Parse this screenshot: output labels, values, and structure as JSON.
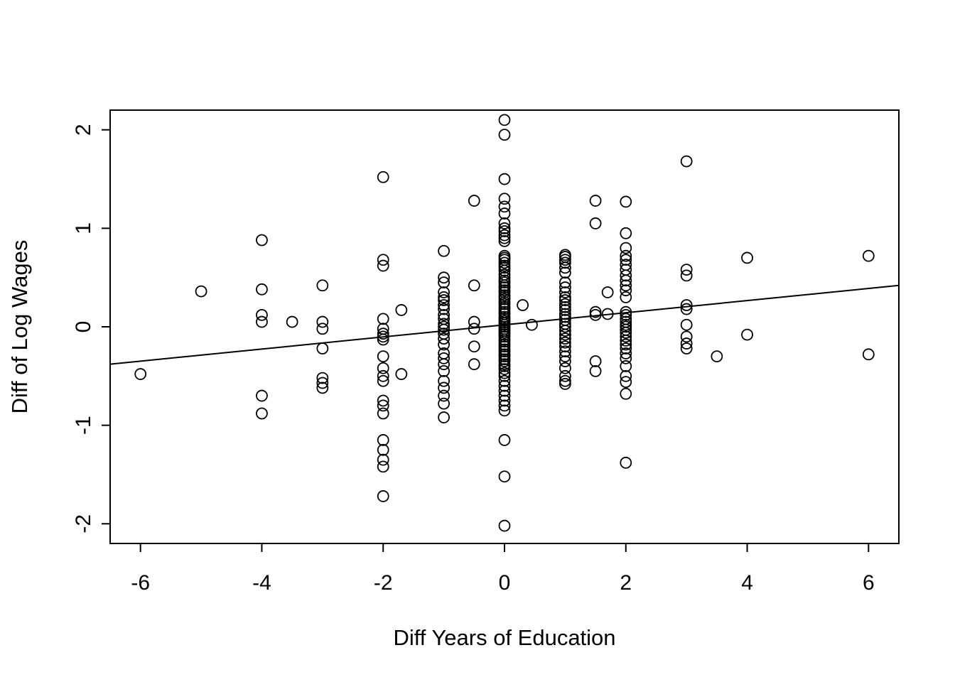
{
  "chart_data": {
    "type": "scatter",
    "title": "",
    "xlabel": "Diff Years of Education",
    "ylabel": "Diff of Log Wages",
    "xlim": [
      -6.5,
      6.5
    ],
    "ylim": [
      -2.2,
      2.2
    ],
    "x_ticks": [
      -6,
      -4,
      -2,
      0,
      2,
      4,
      6
    ],
    "y_ticks": [
      -2,
      -1,
      0,
      1,
      2
    ],
    "grid": false,
    "legend": "none",
    "marker": "open-circle",
    "marker_color": "#000000",
    "fit_line": {
      "slope": 0.0615,
      "intercept": 0.02,
      "color": "#000000"
    },
    "points": [
      [
        -6,
        -0.48
      ],
      [
        -5,
        0.36
      ],
      [
        -4,
        0.88
      ],
      [
        -4,
        0.38
      ],
      [
        -4,
        0.12
      ],
      [
        -4,
        0.05
      ],
      [
        -4,
        -0.7
      ],
      [
        -4,
        -0.88
      ],
      [
        -3.5,
        0.05
      ],
      [
        -3,
        0.42
      ],
      [
        -3,
        0.05
      ],
      [
        -3,
        -0.02
      ],
      [
        -3,
        -0.22
      ],
      [
        -3,
        -0.52
      ],
      [
        -3,
        -0.57
      ],
      [
        -3,
        -0.62
      ],
      [
        -2,
        1.52
      ],
      [
        -2,
        0.68
      ],
      [
        -2,
        0.62
      ],
      [
        -2,
        0.08
      ],
      [
        -2,
        -0.02
      ],
      [
        -2,
        -0.07
      ],
      [
        -2,
        -0.1
      ],
      [
        -2,
        -0.13
      ],
      [
        -2,
        -0.3
      ],
      [
        -2,
        -0.42
      ],
      [
        -2,
        -0.5
      ],
      [
        -2,
        -0.55
      ],
      [
        -2,
        -0.75
      ],
      [
        -2,
        -0.8
      ],
      [
        -2,
        -0.88
      ],
      [
        -2,
        -1.15
      ],
      [
        -2,
        -1.25
      ],
      [
        -2,
        -1.35
      ],
      [
        -2,
        -1.42
      ],
      [
        -2,
        -1.72
      ],
      [
        -1.7,
        0.17
      ],
      [
        -1.7,
        -0.48
      ],
      [
        -1,
        0.77
      ],
      [
        -1,
        0.5
      ],
      [
        -1,
        0.45
      ],
      [
        -1,
        0.35
      ],
      [
        -1,
        0.3
      ],
      [
        -1,
        0.27
      ],
      [
        -1,
        0.22
      ],
      [
        -1,
        0.18
      ],
      [
        -1,
        0.12
      ],
      [
        -1,
        0.08
      ],
      [
        -1,
        0.03
      ],
      [
        -1,
        0.0
      ],
      [
        -1,
        -0.03
      ],
      [
        -1,
        -0.07
      ],
      [
        -1,
        -0.12
      ],
      [
        -1,
        -0.18
      ],
      [
        -1,
        -0.27
      ],
      [
        -1,
        -0.32
      ],
      [
        -1,
        -0.38
      ],
      [
        -1,
        -0.45
      ],
      [
        -1,
        -0.55
      ],
      [
        -1,
        -0.62
      ],
      [
        -1,
        -0.7
      ],
      [
        -1,
        -0.78
      ],
      [
        -1,
        -0.92
      ],
      [
        -0.5,
        1.28
      ],
      [
        -0.5,
        0.42
      ],
      [
        -0.5,
        0.05
      ],
      [
        -0.5,
        -0.02
      ],
      [
        -0.5,
        -0.2
      ],
      [
        -0.5,
        -0.38
      ],
      [
        0,
        2.1
      ],
      [
        0,
        1.95
      ],
      [
        0,
        1.5
      ],
      [
        0,
        1.3
      ],
      [
        0,
        1.22
      ],
      [
        0,
        1.15
      ],
      [
        0,
        1.05
      ],
      [
        0,
        1.0
      ],
      [
        0,
        0.97
      ],
      [
        0,
        0.93
      ],
      [
        0,
        0.9
      ],
      [
        0,
        0.87
      ],
      [
        0,
        0.72
      ],
      [
        0,
        0.7
      ],
      [
        0,
        0.68
      ],
      [
        0,
        0.65
      ],
      [
        0,
        0.62
      ],
      [
        0,
        0.6
      ],
      [
        0,
        0.57
      ],
      [
        0,
        0.53
      ],
      [
        0,
        0.5
      ],
      [
        0,
        0.47
      ],
      [
        0,
        0.45
      ],
      [
        0,
        0.42
      ],
      [
        0,
        0.4
      ],
      [
        0,
        0.37
      ],
      [
        0,
        0.35
      ],
      [
        0,
        0.32
      ],
      [
        0,
        0.3
      ],
      [
        0,
        0.28
      ],
      [
        0,
        0.25
      ],
      [
        0,
        0.23
      ],
      [
        0,
        0.2
      ],
      [
        0,
        0.18
      ],
      [
        0,
        0.15
      ],
      [
        0,
        0.13
      ],
      [
        0,
        0.1
      ],
      [
        0,
        0.08
      ],
      [
        0,
        0.06
      ],
      [
        0,
        0.04
      ],
      [
        0,
        0.02
      ],
      [
        0,
        0.0
      ],
      [
        0,
        -0.02
      ],
      [
        0,
        -0.04
      ],
      [
        0,
        -0.06
      ],
      [
        0,
        -0.08
      ],
      [
        0,
        -0.1
      ],
      [
        0,
        -0.13
      ],
      [
        0,
        -0.15
      ],
      [
        0,
        -0.18
      ],
      [
        0,
        -0.2
      ],
      [
        0,
        -0.23
      ],
      [
        0,
        -0.25
      ],
      [
        0,
        -0.28
      ],
      [
        0,
        -0.3
      ],
      [
        0,
        -0.33
      ],
      [
        0,
        -0.35
      ],
      [
        0,
        -0.38
      ],
      [
        0,
        -0.4
      ],
      [
        0,
        -0.43
      ],
      [
        0,
        -0.47
      ],
      [
        0,
        -0.5
      ],
      [
        0,
        -0.55
      ],
      [
        0,
        -0.6
      ],
      [
        0,
        -0.65
      ],
      [
        0,
        -0.7
      ],
      [
        0,
        -0.75
      ],
      [
        0,
        -0.8
      ],
      [
        0,
        -0.85
      ],
      [
        0,
        -1.15
      ],
      [
        0,
        -1.52
      ],
      [
        0,
        -2.02
      ],
      [
        0.3,
        0.22
      ],
      [
        0.45,
        0.02
      ],
      [
        1,
        0.73
      ],
      [
        1,
        0.71
      ],
      [
        1,
        0.68
      ],
      [
        1,
        0.65
      ],
      [
        1,
        0.6
      ],
      [
        1,
        0.55
      ],
      [
        1,
        0.45
      ],
      [
        1,
        0.4
      ],
      [
        1,
        0.35
      ],
      [
        1,
        0.3
      ],
      [
        1,
        0.27
      ],
      [
        1,
        0.23
      ],
      [
        1,
        0.2
      ],
      [
        1,
        0.17
      ],
      [
        1,
        0.13
      ],
      [
        1,
        0.1
      ],
      [
        1,
        0.07
      ],
      [
        1,
        0.03
      ],
      [
        1,
        0.0
      ],
      [
        1,
        -0.04
      ],
      [
        1,
        -0.08
      ],
      [
        1,
        -0.12
      ],
      [
        1,
        -0.16
      ],
      [
        1,
        -0.2
      ],
      [
        1,
        -0.25
      ],
      [
        1,
        -0.3
      ],
      [
        1,
        -0.35
      ],
      [
        1,
        -0.42
      ],
      [
        1,
        -0.5
      ],
      [
        1,
        -0.55
      ],
      [
        1,
        -0.58
      ],
      [
        1.5,
        1.28
      ],
      [
        1.5,
        1.05
      ],
      [
        1.5,
        0.15
      ],
      [
        1.5,
        0.12
      ],
      [
        1.5,
        -0.35
      ],
      [
        1.5,
        -0.45
      ],
      [
        1.7,
        0.35
      ],
      [
        1.7,
        0.13
      ],
      [
        2,
        1.27
      ],
      [
        2,
        0.95
      ],
      [
        2,
        0.8
      ],
      [
        2,
        0.72
      ],
      [
        2,
        0.68
      ],
      [
        2,
        0.63
      ],
      [
        2,
        0.58
      ],
      [
        2,
        0.52
      ],
      [
        2,
        0.47
      ],
      [
        2,
        0.42
      ],
      [
        2,
        0.37
      ],
      [
        2,
        0.3
      ],
      [
        2,
        0.15
      ],
      [
        2,
        0.12
      ],
      [
        2,
        0.08
      ],
      [
        2,
        0.05
      ],
      [
        2,
        0.02
      ],
      [
        2,
        0.0
      ],
      [
        2,
        -0.03
      ],
      [
        2,
        -0.06
      ],
      [
        2,
        -0.1
      ],
      [
        2,
        -0.14
      ],
      [
        2,
        -0.18
      ],
      [
        2,
        -0.22
      ],
      [
        2,
        -0.27
      ],
      [
        2,
        -0.32
      ],
      [
        2,
        -0.4
      ],
      [
        2,
        -0.5
      ],
      [
        2,
        -0.56
      ],
      [
        2,
        -0.68
      ],
      [
        2,
        -1.38
      ],
      [
        3,
        1.68
      ],
      [
        3,
        0.58
      ],
      [
        3,
        0.52
      ],
      [
        3,
        0.22
      ],
      [
        3,
        0.18
      ],
      [
        3,
        0.02
      ],
      [
        3,
        -0.1
      ],
      [
        3,
        -0.17
      ],
      [
        3,
        -0.22
      ],
      [
        3.5,
        -0.3
      ],
      [
        4,
        0.7
      ],
      [
        4,
        -0.08
      ],
      [
        6,
        0.72
      ],
      [
        6,
        -0.28
      ]
    ]
  }
}
